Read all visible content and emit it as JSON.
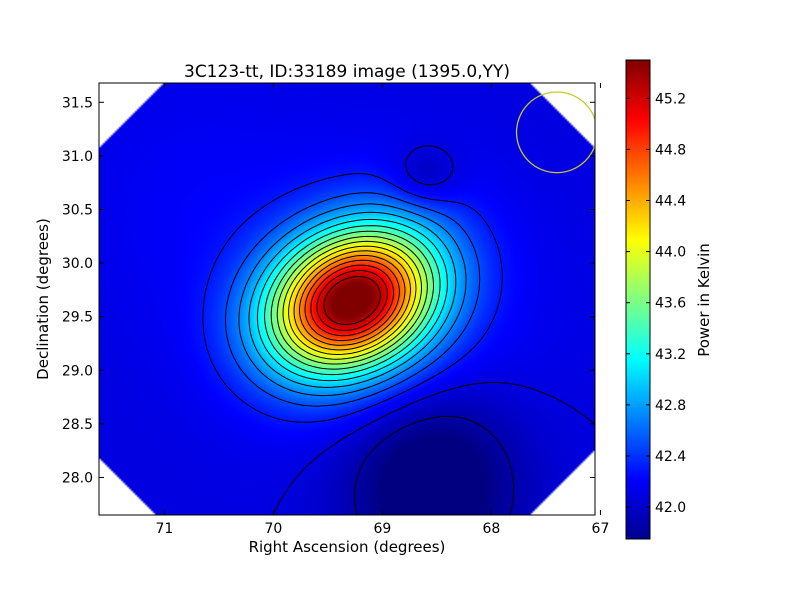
{
  "chart_data": {
    "type": "heatmap",
    "title": "3C123-tt, ID:33189 image (1395.0,YY)",
    "xlabel": "Right Ascension (degrees)",
    "ylabel": "Declination (degrees)",
    "xlim": [
      71.6,
      67.05
    ],
    "ylim": [
      27.65,
      31.68
    ],
    "xticks": [
      71,
      70,
      69,
      68,
      67
    ],
    "xtick_labels": [
      "71",
      "70",
      "69",
      "68",
      "67"
    ],
    "yticks": [
      28.0,
      28.5,
      29.0,
      29.5,
      30.0,
      30.5,
      31.0,
      31.5
    ],
    "ytick_labels": [
      "28.0",
      "28.5",
      "29.0",
      "29.5",
      "30.0",
      "30.5",
      "31.0",
      "31.5"
    ],
    "colormap": "jet",
    "colorbar": {
      "label": "Power in Kelvin",
      "range": [
        41.75,
        45.5
      ],
      "ticks": [
        42.0,
        42.4,
        42.8,
        43.2,
        43.6,
        44.0,
        44.4,
        44.8,
        45.2
      ],
      "tick_labels": [
        "42.0",
        "42.4",
        "42.8",
        "43.2",
        "43.6",
        "44.0",
        "44.4",
        "44.8",
        "45.2"
      ]
    },
    "peak": {
      "ra": 69.28,
      "dec": 29.65,
      "value": 45.45
    },
    "background_level": 42.1,
    "minimum": {
      "ra": 68.55,
      "dec": 27.95,
      "value": 41.8
    },
    "secondary_minimum": {
      "ra": 68.62,
      "dec": 30.78,
      "value": 41.95
    },
    "contour_step": 0.2,
    "beam_circle": {
      "ra": 67.4,
      "dec": 31.22,
      "radius_deg": 0.37,
      "color": "#c8c832"
    },
    "contour_color": "#000000"
  }
}
